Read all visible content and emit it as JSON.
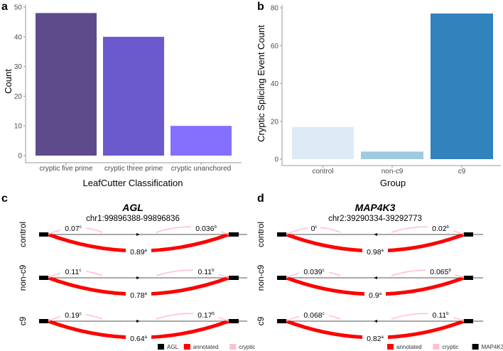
{
  "chart_data": [
    {
      "panel": "a",
      "type": "bar",
      "categories": [
        "cryptic five prime",
        "cryptic three prime",
        "cryptic unanchored"
      ],
      "values": [
        48,
        40,
        10
      ],
      "colors": [
        "#5e4b8b",
        "#6a5acd",
        "#8470ff"
      ],
      "xlabel": "LeafCutter Classification",
      "ylabel": "Count",
      "ylim": [
        0,
        50
      ],
      "yticks": [
        0,
        10,
        20,
        30,
        40,
        50
      ],
      "grid": false
    },
    {
      "panel": "b",
      "type": "bar",
      "categories": [
        "control",
        "non-c9",
        "c9"
      ],
      "values": [
        17,
        4,
        77
      ],
      "colors": [
        "#deebf7",
        "#9ecae1",
        "#3182bd"
      ],
      "xlabel": "Group",
      "ylabel": "Cryptic Splicing Event Count",
      "ylim": [
        0,
        80
      ],
      "yticks": [
        0,
        20,
        40,
        60,
        80
      ],
      "grid": false
    },
    {
      "panel": "c",
      "type": "sashimi",
      "gene": "AGL",
      "coords": "chr1:99896388-99896836",
      "strand": "+",
      "rows": [
        {
          "group": "control",
          "cryptic_left": "0.07",
          "cryptic_left_sup": "c",
          "cryptic_right": "0.036",
          "cryptic_right_sup": "b",
          "annotated": "0.89",
          "annotated_sup": "a"
        },
        {
          "group": "non-c9",
          "cryptic_left": "0.11",
          "cryptic_left_sup": "c",
          "cryptic_right": "0.11",
          "cryptic_right_sup": "b",
          "annotated": "0.78",
          "annotated_sup": "a"
        },
        {
          "group": "c9",
          "cryptic_left": "0.19",
          "cryptic_left_sup": "c",
          "cryptic_right": "0.17",
          "cryptic_right_sup": "b",
          "annotated": "0.64",
          "annotated_sup": "a"
        }
      ],
      "legend": [
        {
          "label": "AGL",
          "color": "#000000"
        },
        {
          "label": "annotated",
          "color": "#ff0000"
        },
        {
          "label": "cryptic",
          "color": "#ffc0cb"
        }
      ]
    },
    {
      "panel": "d",
      "type": "sashimi",
      "gene": "MAP4K3",
      "coords": "chr2:39290334-39292773",
      "strand": "-",
      "rows": [
        {
          "group": "control",
          "cryptic_left": "0",
          "cryptic_left_sup": "c",
          "cryptic_right": "0.02",
          "cryptic_right_sup": "b",
          "annotated": "0.98",
          "annotated_sup": "a"
        },
        {
          "group": "non-c9",
          "cryptic_left": "0.039",
          "cryptic_left_sup": "c",
          "cryptic_right": "0.065",
          "cryptic_right_sup": "b",
          "annotated": "0.9",
          "annotated_sup": "a"
        },
        {
          "group": "c9",
          "cryptic_left": "0.068",
          "cryptic_left_sup": "c",
          "cryptic_right": "0.11",
          "cryptic_right_sup": "b",
          "annotated": "0.82",
          "annotated_sup": "a"
        }
      ],
      "legend": [
        {
          "label": "annotated",
          "color": "#ff0000"
        },
        {
          "label": "cryptic",
          "color": "#ffc0cb"
        },
        {
          "label": "MAP4K3",
          "color": "#000000"
        }
      ]
    }
  ]
}
